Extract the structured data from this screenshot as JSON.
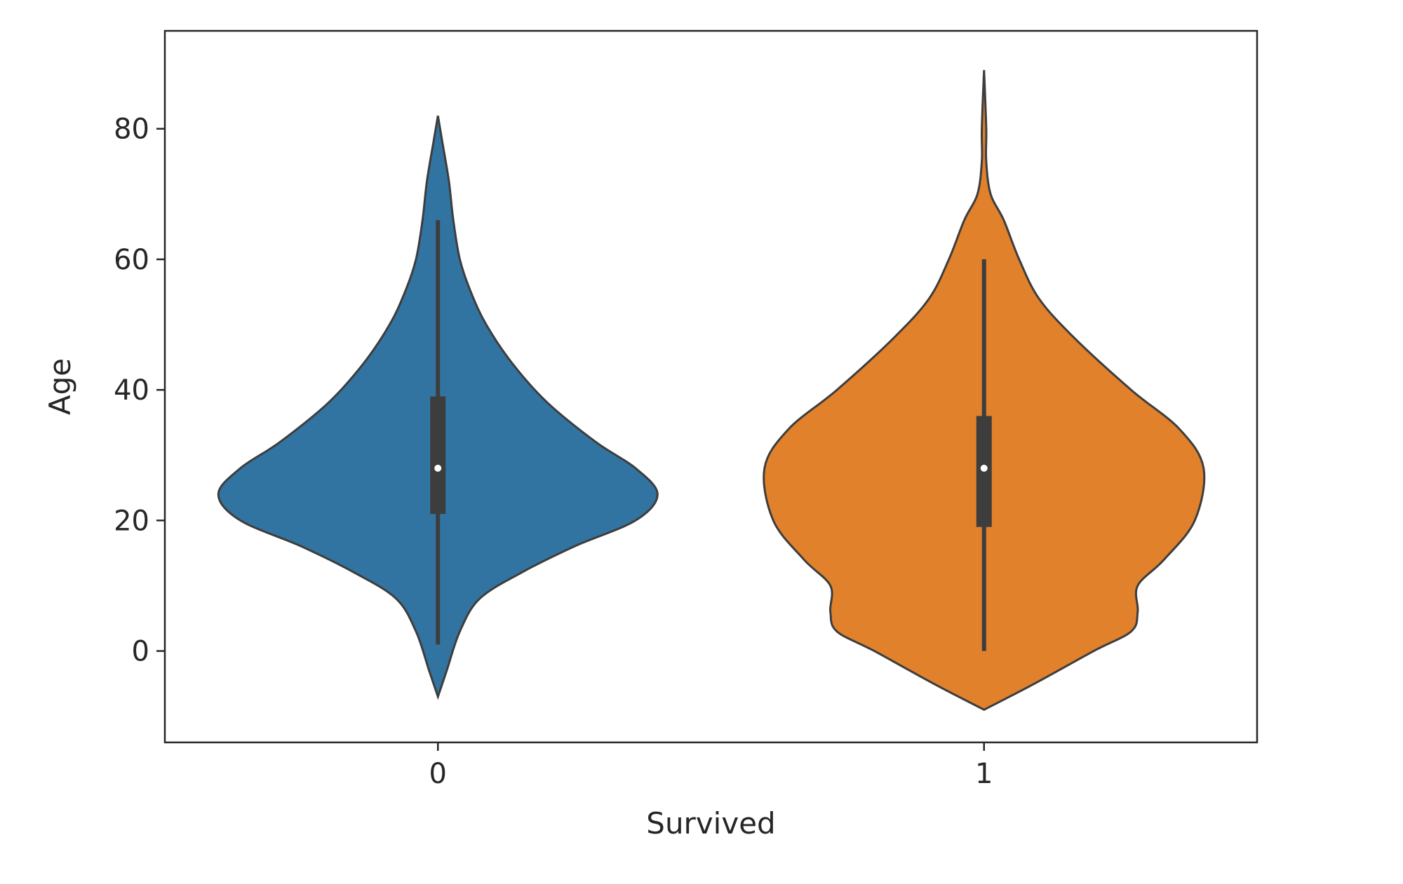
{
  "chart_data": {
    "type": "violin",
    "title": "",
    "xlabel": "Survived",
    "ylabel": "Age",
    "ylim": [
      -14,
      95
    ],
    "yticks": [
      0,
      20,
      40,
      60,
      80
    ],
    "grid": false,
    "categories": [
      "0",
      "1"
    ],
    "series": [
      {
        "category": "0",
        "color": "#3274a1",
        "min": 1,
        "q1": 21,
        "median": 28,
        "q3": 39,
        "max": 66,
        "kde_extent": [
          -7,
          82
        ],
        "density_profile": [
          {
            "age": -7,
            "w": 0.0
          },
          {
            "age": -3,
            "w": 0.04
          },
          {
            "age": 3,
            "w": 0.1
          },
          {
            "age": 8,
            "w": 0.19
          },
          {
            "age": 12,
            "w": 0.38
          },
          {
            "age": 16,
            "w": 0.62
          },
          {
            "age": 20,
            "w": 0.9
          },
          {
            "age": 24,
            "w": 1.0
          },
          {
            "age": 28,
            "w": 0.9
          },
          {
            "age": 32,
            "w": 0.72
          },
          {
            "age": 38,
            "w": 0.5
          },
          {
            "age": 44,
            "w": 0.34
          },
          {
            "age": 50,
            "w": 0.22
          },
          {
            "age": 55,
            "w": 0.15
          },
          {
            "age": 60,
            "w": 0.1
          },
          {
            "age": 66,
            "w": 0.07
          },
          {
            "age": 72,
            "w": 0.05
          },
          {
            "age": 78,
            "w": 0.02
          },
          {
            "age": 82,
            "w": 0.0
          }
        ]
      },
      {
        "category": "1",
        "color": "#e1812c",
        "min": 0,
        "q1": 19,
        "median": 28,
        "q3": 36,
        "max": 60,
        "kde_extent": [
          -9,
          89
        ],
        "density_profile": [
          {
            "age": -9,
            "w": 0.0
          },
          {
            "age": -5,
            "w": 0.23
          },
          {
            "age": 0,
            "w": 0.5
          },
          {
            "age": 3,
            "w": 0.67
          },
          {
            "age": 6,
            "w": 0.7
          },
          {
            "age": 10,
            "w": 0.7
          },
          {
            "age": 14,
            "w": 0.82
          },
          {
            "age": 20,
            "w": 0.96
          },
          {
            "age": 28,
            "w": 1.0
          },
          {
            "age": 34,
            "w": 0.89
          },
          {
            "age": 40,
            "w": 0.67
          },
          {
            "age": 48,
            "w": 0.41
          },
          {
            "age": 54,
            "w": 0.25
          },
          {
            "age": 60,
            "w": 0.16
          },
          {
            "age": 66,
            "w": 0.09
          },
          {
            "age": 70,
            "w": 0.03
          },
          {
            "age": 75,
            "w": 0.01
          },
          {
            "age": 80,
            "w": 0.01
          },
          {
            "age": 89,
            "w": 0.0
          }
        ]
      }
    ]
  }
}
